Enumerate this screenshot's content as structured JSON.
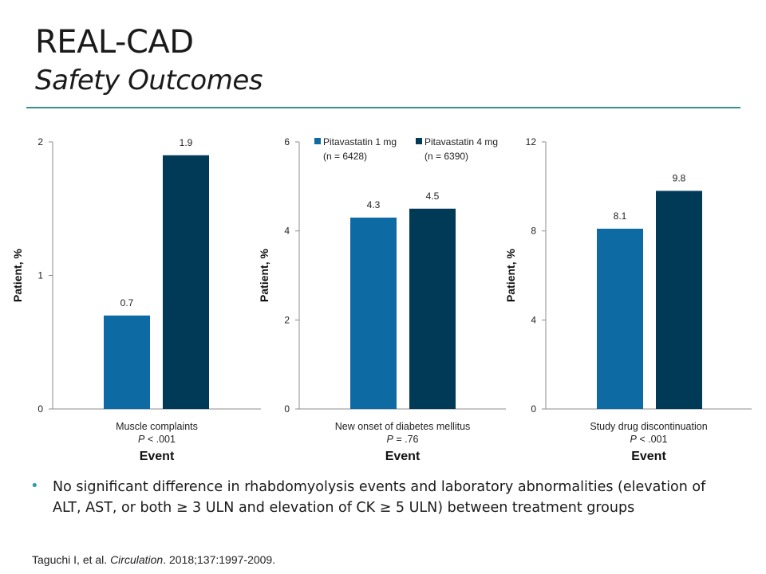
{
  "slide": {
    "title": "REAL-CAD",
    "subtitle": "Safety Outcomes",
    "bullet": "No significant difference in rhabdomyolysis events and laboratory abnormalities (elevation of ALT, AST, or both ≥ 3 ULN and elevation of CK ≥ 5 ULN) between treatment groups",
    "citation": {
      "author": "Taguchi I, et al. ",
      "journal": "Circulation",
      "details": ". 2018;137:1997-2009."
    }
  },
  "legend": {
    "items": [
      {
        "name": "Pitavastatin 1 mg",
        "n": "(n = 6428)",
        "color": "#0e6aa2"
      },
      {
        "name": "Pitavastatin 4 mg",
        "n": "(n = 6390)",
        "color": "#003a57"
      }
    ]
  },
  "chart_data": [
    {
      "type": "bar",
      "title": "",
      "ylabel": "Patient, %",
      "xlabel": "Event",
      "category": "Muscle complaints",
      "pvalue_label": "P",
      "pvalue_rest": " < .001",
      "ylim": [
        0,
        2
      ],
      "yticks": [
        "0",
        "1",
        "2"
      ],
      "series": [
        {
          "name": "Pitavastatin 1 mg",
          "value": 0.7,
          "label": "0.7"
        },
        {
          "name": "Pitavastatin 4 mg",
          "value": 1.9,
          "label": "1.9"
        }
      ]
    },
    {
      "type": "bar",
      "title": "",
      "ylabel": "Patient, %",
      "xlabel": "Event",
      "category": "New onset of diabetes mellitus",
      "pvalue_label": "P",
      "pvalue_rest": " = .76",
      "ylim": [
        0,
        6
      ],
      "yticks": [
        "0",
        "2",
        "4",
        "6"
      ],
      "series": [
        {
          "name": "Pitavastatin 1 mg",
          "value": 4.3,
          "label": "4.3"
        },
        {
          "name": "Pitavastatin 4 mg",
          "value": 4.5,
          "label": "4.5"
        }
      ]
    },
    {
      "type": "bar",
      "title": "",
      "ylabel": "Patient, %",
      "xlabel": "Event",
      "category": "Study drug discontinuation",
      "pvalue_label": "P",
      "pvalue_rest": " < .001",
      "ylim": [
        0,
        12
      ],
      "yticks": [
        "0",
        "4",
        "8",
        "12"
      ],
      "series": [
        {
          "name": "Pitavastatin 1 mg",
          "value": 8.1,
          "label": "8.1"
        },
        {
          "name": "Pitavastatin 4 mg",
          "value": 9.8,
          "label": "9.8"
        }
      ]
    }
  ]
}
